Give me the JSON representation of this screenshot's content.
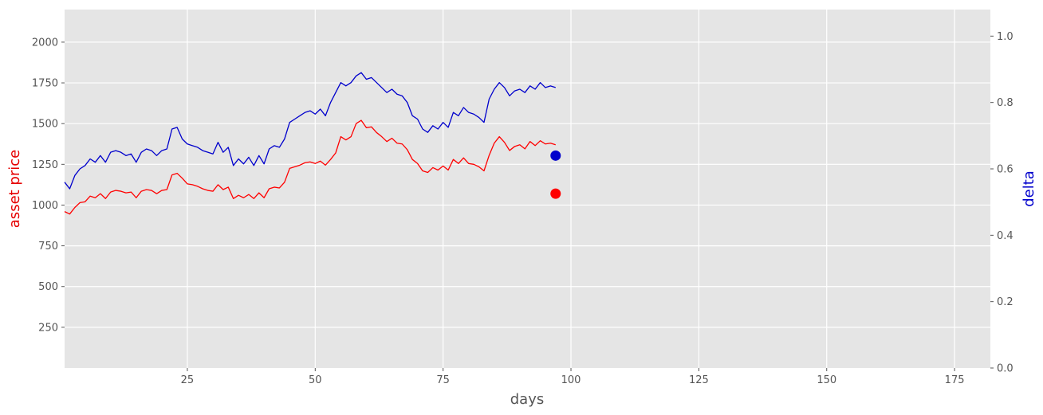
{
  "chart_data": {
    "type": "line",
    "xlabel": "days",
    "ylabel_left": "asset price",
    "ylabel_right": "delta",
    "xlim": [
      1,
      182
    ],
    "ylim_left": [
      0,
      2200
    ],
    "ylim_right": [
      0,
      1.08
    ],
    "x_ticks": [
      25,
      50,
      75,
      100,
      125,
      150,
      175
    ],
    "y_ticks_left": [
      250,
      500,
      750,
      1000,
      1250,
      1500,
      1750,
      2000
    ],
    "y_ticks_right": [
      0.0,
      0.2,
      0.4,
      0.6,
      0.8,
      1.0
    ],
    "grid": true,
    "colors": {
      "background": "#e5e5e5",
      "grid": "#ffffff",
      "price": "#ff0000",
      "delta": "#0000cc",
      "price_label": "#e60000",
      "delta_label": "#0000cc"
    },
    "series": [
      {
        "axis": "left",
        "x": [
          1,
          2,
          3,
          4,
          5,
          6,
          7,
          8,
          9,
          10,
          11,
          12,
          13,
          14,
          15,
          16,
          17,
          18,
          19,
          20,
          21,
          22,
          23,
          24,
          25,
          26,
          27,
          28,
          29,
          30,
          31,
          32,
          33,
          34,
          35,
          36,
          37,
          38,
          39,
          40,
          41,
          42,
          43,
          44,
          45,
          46,
          47,
          48,
          49,
          50,
          51,
          52,
          53,
          54,
          55,
          56,
          57,
          58,
          59,
          60,
          61,
          62,
          63,
          64,
          65,
          66,
          67,
          68,
          69,
          70,
          71,
          72,
          73,
          74,
          75,
          76,
          77,
          78,
          79,
          80,
          81,
          82,
          83,
          84,
          85,
          86,
          87,
          88,
          89,
          90,
          91,
          92,
          93,
          94,
          95,
          96,
          97
        ],
        "y": [
          960,
          945,
          985,
          1015,
          1020,
          1055,
          1045,
          1070,
          1040,
          1080,
          1090,
          1085,
          1075,
          1080,
          1045,
          1085,
          1095,
          1090,
          1070,
          1090,
          1095,
          1185,
          1195,
          1165,
          1130,
          1125,
          1115,
          1100,
          1090,
          1085,
          1125,
          1095,
          1110,
          1040,
          1060,
          1045,
          1065,
          1040,
          1075,
          1045,
          1100,
          1110,
          1105,
          1140,
          1225,
          1235,
          1245,
          1260,
          1265,
          1255,
          1270,
          1245,
          1280,
          1320,
          1420,
          1400,
          1420,
          1500,
          1520,
          1475,
          1480,
          1445,
          1420,
          1390,
          1410,
          1380,
          1375,
          1340,
          1280,
          1255,
          1210,
          1200,
          1230,
          1215,
          1240,
          1215,
          1280,
          1255,
          1290,
          1255,
          1250,
          1235,
          1210,
          1305,
          1380,
          1420,
          1385,
          1335,
          1360,
          1370,
          1345,
          1390,
          1365,
          1395,
          1375,
          1380,
          1370
        ],
        "marker": {
          "x": 97,
          "y": 1070
        }
      },
      {
        "axis": "right",
        "x": [
          1,
          2,
          3,
          4,
          5,
          6,
          7,
          8,
          9,
          10,
          11,
          12,
          13,
          14,
          15,
          16,
          17,
          18,
          19,
          20,
          21,
          22,
          23,
          24,
          25,
          26,
          27,
          28,
          29,
          30,
          31,
          32,
          33,
          34,
          35,
          36,
          37,
          38,
          39,
          40,
          41,
          42,
          43,
          44,
          45,
          46,
          47,
          48,
          49,
          50,
          51,
          52,
          53,
          54,
          55,
          56,
          57,
          58,
          59,
          60,
          61,
          62,
          63,
          64,
          65,
          66,
          67,
          68,
          69,
          70,
          71,
          72,
          73,
          74,
          75,
          76,
          77,
          78,
          79,
          80,
          81,
          82,
          83,
          84,
          85,
          86,
          87,
          88,
          89,
          90,
          91,
          92,
          93,
          94,
          95,
          96,
          97
        ],
        "y": [
          0.56,
          0.54,
          0.58,
          0.6,
          0.61,
          0.63,
          0.62,
          0.64,
          0.62,
          0.65,
          0.655,
          0.65,
          0.64,
          0.645,
          0.62,
          0.65,
          0.66,
          0.655,
          0.64,
          0.655,
          0.66,
          0.72,
          0.725,
          0.69,
          0.675,
          0.67,
          0.665,
          0.655,
          0.65,
          0.645,
          0.68,
          0.65,
          0.665,
          0.61,
          0.63,
          0.615,
          0.635,
          0.61,
          0.64,
          0.615,
          0.66,
          0.67,
          0.665,
          0.69,
          0.74,
          0.75,
          0.76,
          0.77,
          0.775,
          0.765,
          0.78,
          0.76,
          0.8,
          0.83,
          0.86,
          0.85,
          0.86,
          0.88,
          0.89,
          0.87,
          0.875,
          0.86,
          0.845,
          0.83,
          0.84,
          0.825,
          0.82,
          0.8,
          0.76,
          0.75,
          0.72,
          0.71,
          0.73,
          0.72,
          0.74,
          0.725,
          0.77,
          0.76,
          0.785,
          0.77,
          0.765,
          0.755,
          0.74,
          0.81,
          0.84,
          0.86,
          0.845,
          0.82,
          0.835,
          0.84,
          0.83,
          0.85,
          0.84,
          0.86,
          0.845,
          0.85,
          0.845
        ],
        "marker": {
          "x": 97,
          "y": 0.64
        }
      }
    ]
  }
}
